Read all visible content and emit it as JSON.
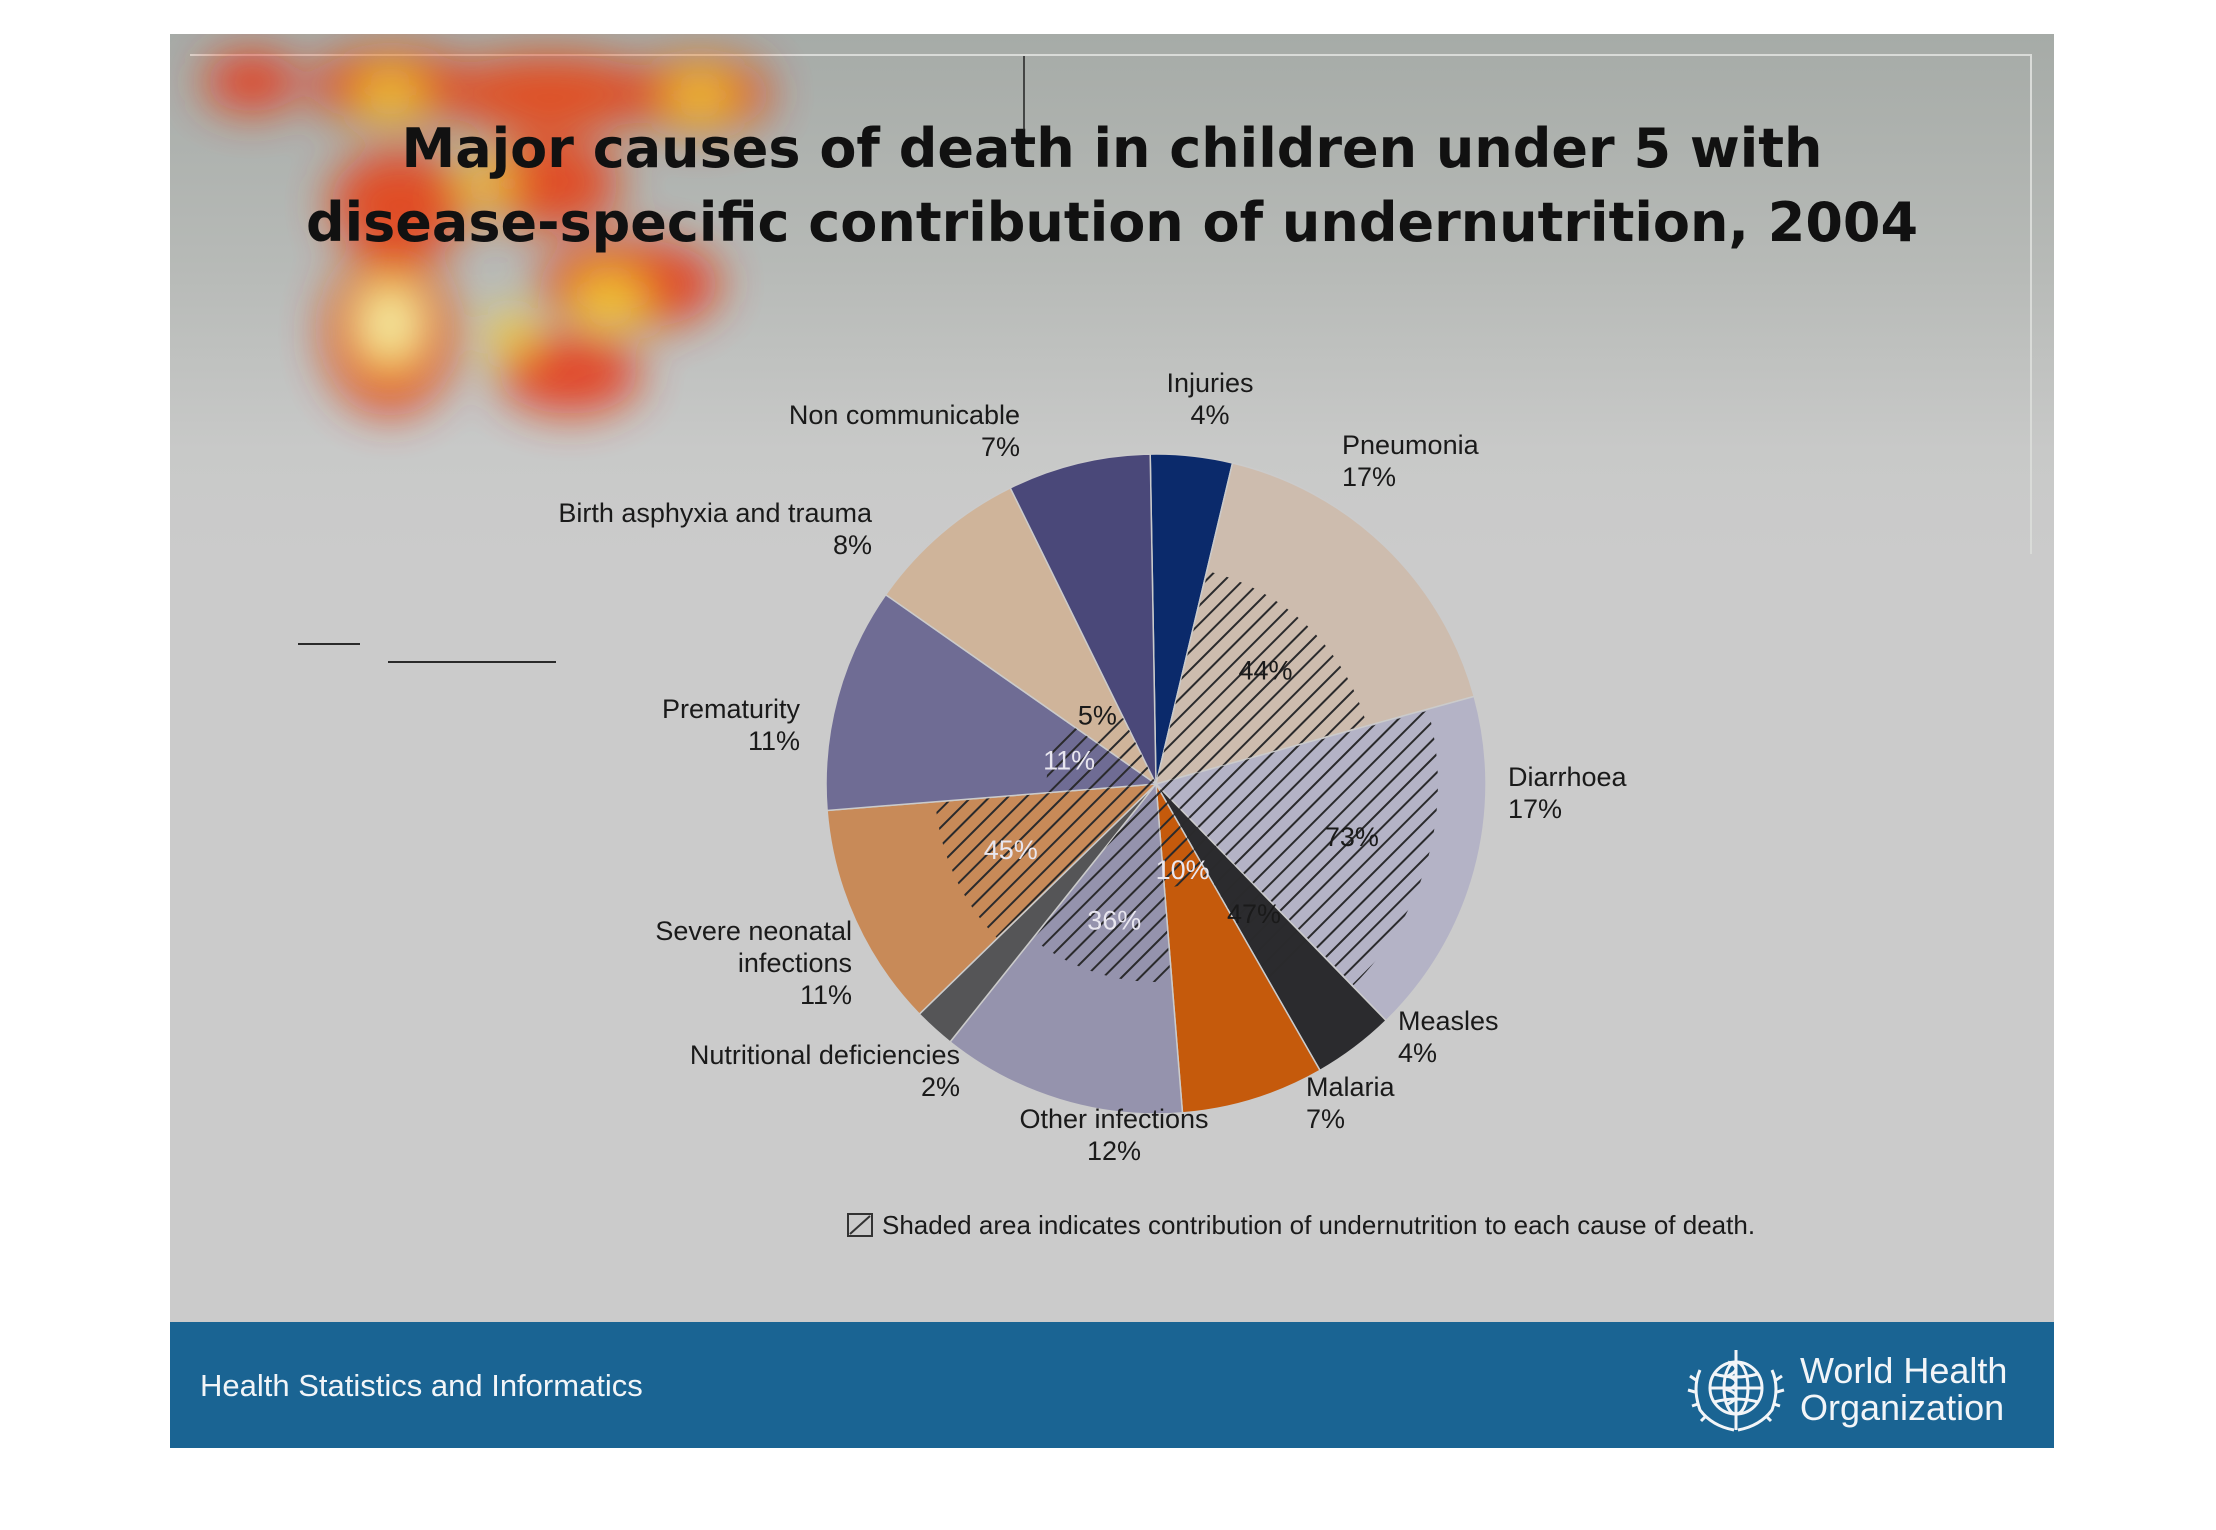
{
  "slide": {
    "title_lines": [
      "Major causes of death in children under 5 with",
      "disease-specific contribution of undernutrition, 2004"
    ],
    "footer_text": "Health Statistics and Informatics",
    "organization_lines": [
      "World Health",
      "Organization"
    ],
    "logo_icon": "who-emblem-icon"
  },
  "chart_data": {
    "type": "pie",
    "title": "Major causes of death in children under 5 with disease-specific contribution of undernutrition, 2004",
    "slices": [
      {
        "name": "Injuries",
        "value": 4,
        "label": "4%",
        "color": "#0b2a6b",
        "undernutrition": null
      },
      {
        "name": "Pneumonia",
        "value": 17,
        "label": "17%",
        "color": "#cdbcae",
        "undernutrition": 44,
        "undernutrition_label": "44%"
      },
      {
        "name": "Diarrhoea",
        "value": 17,
        "label": "17%",
        "color": "#b4b3c6",
        "undernutrition": 73,
        "undernutrition_label": "73%"
      },
      {
        "name": "Measles",
        "value": 4,
        "label": "4%",
        "color": "#2b2b2e",
        "undernutrition": 47,
        "undernutrition_label": "47%"
      },
      {
        "name": "Malaria",
        "value": 7,
        "label": "7%",
        "color": "#c55a0c",
        "undernutrition": 10,
        "undernutrition_label": "10%"
      },
      {
        "name": "Other infections",
        "value": 12,
        "label": "12%",
        "color": "#9593ad",
        "undernutrition": 36,
        "undernutrition_label": "36%"
      },
      {
        "name": "Nutritional deficiencies",
        "value": 2,
        "label": "2%",
        "color": "#555557",
        "undernutrition": null
      },
      {
        "name": "Severe neonatal infections",
        "value": 11,
        "label": "11%",
        "color": "#c88a58",
        "undernutrition": 45,
        "undernutrition_label": "45%"
      },
      {
        "name": "Prematurity",
        "value": 11,
        "label": "11%",
        "color": "#6f6c94",
        "undernutrition": 11,
        "undernutrition_label": "11%"
      },
      {
        "name": "Birth asphyxia and trauma",
        "value": 8,
        "label": "8%",
        "color": "#cfb49a",
        "undernutrition": 5,
        "undernutrition_label": "5%"
      },
      {
        "name": "Non communicable",
        "value": 7,
        "label": "7%",
        "color": "#4a4879",
        "undernutrition": null
      }
    ],
    "note": "Shaded area indicates contribution of undernutrition to each cause of death."
  }
}
